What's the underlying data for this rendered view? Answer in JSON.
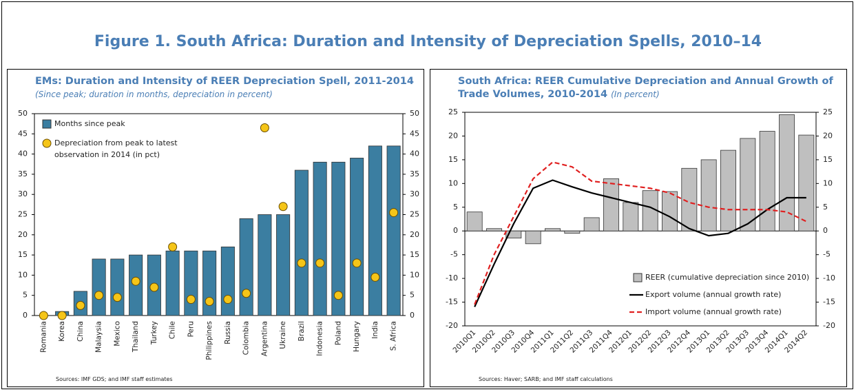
{
  "figure_title": "Figure 1. South Africa: Duration and Intensity of Depreciation Spells, 2010–14",
  "chart_data": [
    {
      "type": "bar",
      "title": "EMs: Duration and Intensity of REER Depreciation Spell, 2011-2014",
      "subtitle": "(Since peak; duration in months, depreciation in percent)",
      "source": "Sources: IMF GDS; and IMF staff estimates",
      "categories": [
        "Romania",
        "Korea",
        "China",
        "Malaysia",
        "Mexico",
        "Thailand",
        "Turkey",
        "Chile",
        "Peru",
        "Philippines",
        "Russia",
        "Colombia",
        "Argentina",
        "Ukraine",
        "Brazil",
        "Indonesia",
        "Poland",
        "Hungary",
        "India",
        "S. Africa"
      ],
      "series": [
        {
          "name": "Months since peak",
          "type": "bar",
          "color": "#3b7ea1",
          "values": [
            0,
            1,
            6,
            14,
            14,
            15,
            15,
            16,
            16,
            16,
            17,
            24,
            25,
            25,
            36,
            38,
            38,
            39,
            42,
            42
          ]
        },
        {
          "name": "Depreciation from peak to latest observation in 2014 (in pct)",
          "type": "scatter",
          "color": "#f5c518",
          "values": [
            0,
            0,
            2.5,
            5,
            4.5,
            8.5,
            7,
            17,
            4,
            3.5,
            4,
            5.5,
            46.5,
            27,
            13,
            13,
            5,
            13,
            9.5,
            25.5
          ]
        }
      ],
      "ylim": [
        0,
        50
      ],
      "yticks": [
        0,
        5,
        10,
        15,
        20,
        25,
        30,
        35,
        40,
        45,
        50
      ],
      "y2lim": [
        0,
        50
      ],
      "y2ticks": [
        0,
        5,
        10,
        15,
        20,
        25,
        30,
        35,
        40,
        45,
        50
      ],
      "legend": "upper left",
      "grid": false
    },
    {
      "type": "bar",
      "title": "South Africa: REER Cumulative Depreciation and Annual Growth of Trade Volumes, 2010-2014",
      "subtitle": "(In percent)",
      "source": "Sources: Haver; SARB; and IMF staff calculations",
      "categories": [
        "2010Q1",
        "2010Q2",
        "2010Q3",
        "2010Q4",
        "2011Q1",
        "2011Q2",
        "2011Q3",
        "2011Q4",
        "2012Q1",
        "2012Q2",
        "2012Q3",
        "2012Q4",
        "2013Q1",
        "2013Q2",
        "2013Q3",
        "2013Q4",
        "2014Q1",
        "2014Q2"
      ],
      "series": [
        {
          "name": "REER (cumulative depreciation since 2010)",
          "type": "bar",
          "color": "#bfbfbf",
          "values": [
            4,
            0.5,
            -1.5,
            -2.7,
            0.5,
            -0.5,
            2.8,
            11,
            6,
            8.5,
            8.3,
            13.2,
            15,
            17,
            19.5,
            21,
            24.5,
            20.2
          ]
        },
        {
          "name": "Export volume (annual growth rate)",
          "type": "line",
          "color": "#000000",
          "dashed": false,
          "values": [
            -16,
            -7,
            1.5,
            9,
            10.7,
            9.3,
            8,
            7,
            6,
            5,
            3,
            0.5,
            -1,
            -0.5,
            1.5,
            4.5,
            7,
            7
          ]
        },
        {
          "name": "Import volume (annual growth rate)",
          "type": "line",
          "color": "#e02020",
          "dashed": true,
          "values": [
            -15.5,
            -5,
            3,
            11,
            14.5,
            13.5,
            10.5,
            10,
            9.5,
            9,
            8,
            6,
            5,
            4.5,
            4.5,
            4.5,
            4,
            2
          ]
        }
      ],
      "ylim": [
        -20,
        25
      ],
      "yticks": [
        -20,
        -15,
        -10,
        -5,
        0,
        5,
        10,
        15,
        20,
        25
      ],
      "y2lim": [
        -20,
        25
      ],
      "y2ticks": [
        -20,
        -15,
        -10,
        -5,
        0,
        5,
        10,
        15,
        20,
        25
      ],
      "legend": "lower right",
      "grid": false
    }
  ]
}
